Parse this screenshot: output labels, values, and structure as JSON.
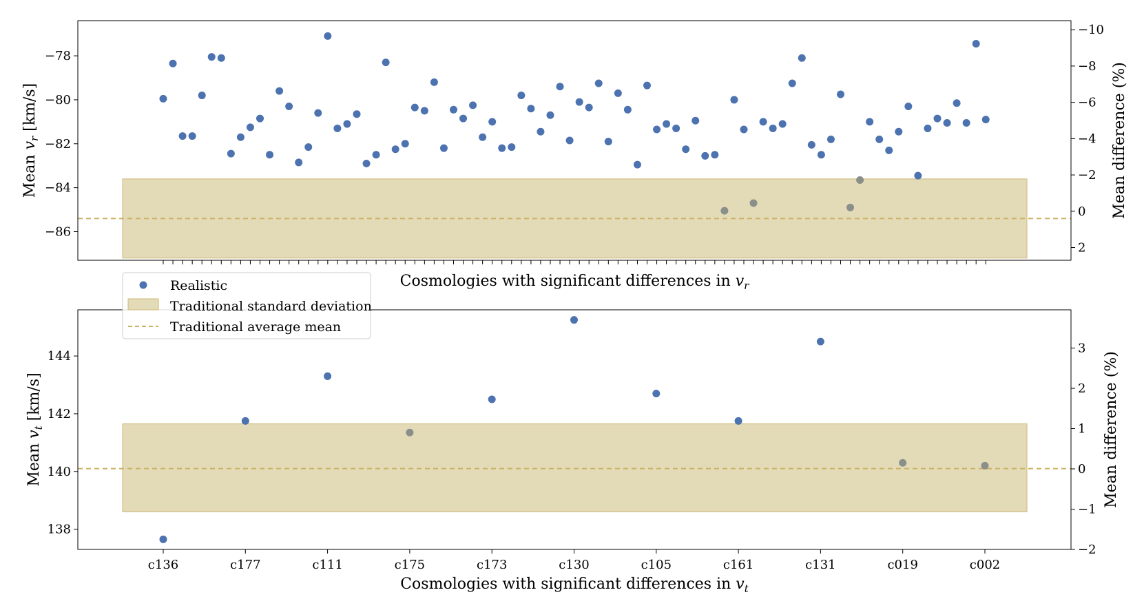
{
  "colors": {
    "realistic": "#4c72b0",
    "realistic_in_band": "#8a8f8a",
    "band_fill": "#e3dbb8",
    "band_edge": "#cdb977",
    "mean_line": "#ccb264",
    "axis": "#000000"
  },
  "legend": {
    "realistic": "Realistic",
    "band": "Traditional standard deviation",
    "mean": "Traditional average mean"
  },
  "chart_data": [
    {
      "type": "scatter",
      "panel": "top",
      "title": "",
      "xlabel": "Cosmologies with significant differences in v_r",
      "xlabel_text": "Cosmologies with significant differences in ",
      "xlabel_var": "v",
      "xlabel_sub": "r",
      "ylabel_text": "Mean ",
      "ylabel_var": "v",
      "ylabel_sub": "r",
      "ylabel_unit": " [km/s]",
      "ylabel_right": "Mean difference (%)",
      "ylim": [
        -87.3,
        -76.4
      ],
      "yticks": [
        -78,
        -80,
        -82,
        -84,
        -86
      ],
      "ytick_labels": [
        "−78",
        "−80",
        "−82",
        "−84",
        "−86"
      ],
      "y2lim": [
        2.7,
        -10.5
      ],
      "y2ticks": [
        -10,
        -8,
        -6,
        -4,
        -2,
        0,
        2
      ],
      "y2tick_labels": [
        "−10",
        "−8",
        "−6",
        "−4",
        "−2",
        "0",
        "2"
      ],
      "x_count": 86,
      "show_xtick_labels": false,
      "band": [
        -87.2,
        -83.6
      ],
      "mean": -85.4,
      "series": [
        {
          "name": "Realistic",
          "values": [
            -79.95,
            -78.35,
            -81.65,
            -81.65,
            -79.8,
            -78.05,
            -78.1,
            -82.45,
            -81.7,
            -81.25,
            -80.85,
            -82.5,
            -79.6,
            -80.3,
            -82.85,
            -82.15,
            -80.6,
            -77.1,
            -81.3,
            -81.1,
            -80.65,
            -82.9,
            -82.5,
            -78.3,
            -82.25,
            -82.0,
            -80.35,
            -80.5,
            -79.2,
            -82.2,
            -80.45,
            -80.85,
            -80.25,
            -81.7,
            -81.0,
            -82.2,
            -82.15,
            -79.8,
            -80.4,
            -81.45,
            -80.7,
            -79.4,
            -81.85,
            -80.1,
            -80.35,
            -79.25,
            -81.9,
            -79.7,
            -80.45,
            -82.95,
            -79.35,
            -81.35,
            -81.1,
            -81.3,
            -82.25,
            -80.95,
            -82.55,
            -82.5,
            -85.05,
            -80.0,
            -81.35,
            -84.7,
            -81.0,
            -81.3,
            -81.1,
            -79.25,
            -78.1,
            -82.05,
            -82.5,
            -81.8,
            -79.75,
            -84.9,
            -83.65,
            -81.0,
            -81.8,
            -82.3,
            -81.45,
            -80.3,
            -83.45,
            -81.3,
            -80.85,
            -81.05,
            -80.15,
            -81.05,
            -77.45,
            -80.9
          ]
        }
      ]
    },
    {
      "type": "scatter",
      "panel": "bottom",
      "title": "",
      "xlabel": "Cosmologies with significant differences in v_t",
      "xlabel_text": "Cosmologies with significant differences in ",
      "xlabel_var": "v",
      "xlabel_sub": "t",
      "ylabel_text": "Mean ",
      "ylabel_var": "v",
      "ylabel_sub": "t",
      "ylabel_unit": " [km/s]",
      "ylabel_right": "Mean difference (%)",
      "ylim": [
        137.3,
        145.6
      ],
      "yticks": [
        138,
        140,
        142,
        144
      ],
      "ytick_labels": [
        "138",
        "140",
        "142",
        "144"
      ],
      "y2lim": [
        -2.0,
        3.95
      ],
      "y2ticks": [
        -2,
        -1,
        0,
        1,
        2,
        3
      ],
      "y2tick_labels": [
        "−2",
        "−1",
        "0",
        "1",
        "2",
        "3"
      ],
      "categories": [
        "c136",
        "c177",
        "c111",
        "c175",
        "c173",
        "c130",
        "c105",
        "c161",
        "c131",
        "c019",
        "c002"
      ],
      "show_xtick_labels": true,
      "band": [
        138.6,
        141.65
      ],
      "mean": 140.1,
      "series": [
        {
          "name": "Realistic",
          "values": [
            137.65,
            141.75,
            143.3,
            141.35,
            142.5,
            145.25,
            142.7,
            141.75,
            144.5,
            140.3,
            140.2
          ]
        }
      ]
    }
  ]
}
